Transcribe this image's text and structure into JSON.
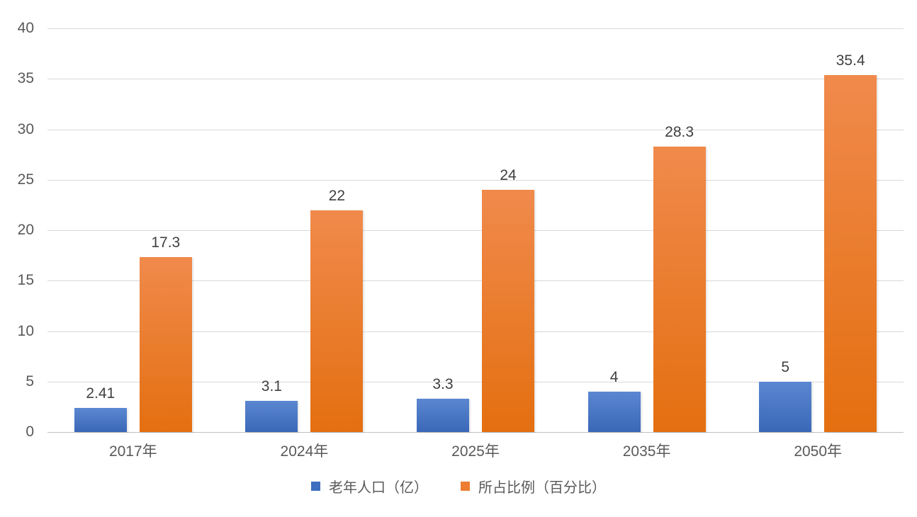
{
  "chart_data": {
    "type": "bar",
    "title": "",
    "xlabel": "",
    "ylabel": "",
    "categories": [
      "2017年",
      "2024年",
      "2025年",
      "2035年",
      "2050年"
    ],
    "series": [
      {
        "name": "老年人口（亿）",
        "values": [
          2.41,
          3.1,
          3.3,
          4,
          5
        ],
        "labels": [
          "2.41",
          "3.1",
          "3.3",
          "4",
          "5"
        ],
        "swatch_color": "#3d6ebf",
        "gradient_top": "#5b87d1",
        "gradient_bottom": "#3a67b7"
      },
      {
        "name": "所占比例（百分比）",
        "values": [
          17.3,
          22,
          24,
          28.3,
          35.4
        ],
        "labels": [
          "17.3",
          "22",
          "24",
          "28.3",
          "35.4"
        ],
        "swatch_color": "#ed7d31",
        "gradient_top": "#f08a4c",
        "gradient_bottom": "#e46f10"
      }
    ],
    "ylim": [
      0,
      40
    ],
    "ytick_step": 5,
    "ytick_labels": [
      "0",
      "5",
      "10",
      "15",
      "20",
      "25",
      "30",
      "35",
      "40"
    ],
    "grid": true,
    "legend_position": "bottom",
    "gridline_color": "#d9d9d9",
    "axis_text_color": "#595959",
    "value_label_color": "#404040"
  }
}
